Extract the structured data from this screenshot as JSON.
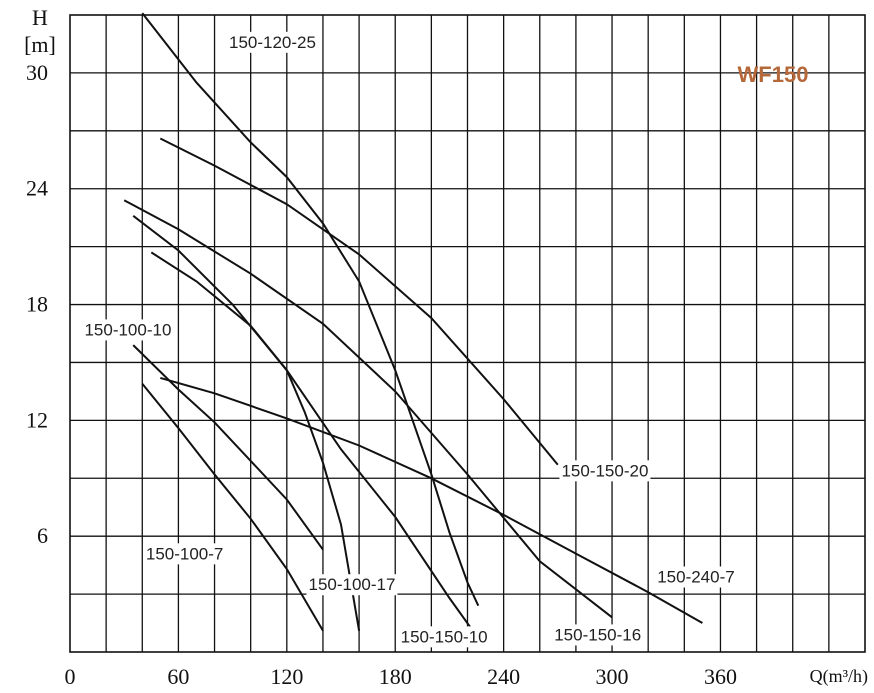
{
  "chart_data": {
    "type": "line",
    "title": "WF150",
    "title_color": "#b5683a",
    "ylabel_symbol": "H",
    "ylabel_unit": "[m]",
    "xlabel": "Q(m³/h)",
    "xlim": [
      0,
      440
    ],
    "ylim": [
      0,
      33
    ],
    "x_ticks": [
      "0",
      "60",
      "120",
      "180",
      "240",
      "300",
      "360"
    ],
    "y_ticks": [
      "6",
      "12",
      "18",
      "24",
      "30"
    ],
    "grid": true,
    "series": [
      {
        "name": "150-120-25",
        "points": [
          [
            40,
            33.1
          ],
          [
            70,
            29.5
          ],
          [
            100,
            26.4
          ],
          [
            120,
            24.6
          ],
          [
            140,
            22.2
          ],
          [
            160,
            19.2
          ],
          [
            180,
            14.6
          ],
          [
            200,
            9.2
          ],
          [
            210,
            6.2
          ],
          [
            220,
            3.6
          ],
          [
            226,
            2.4
          ]
        ]
      },
      {
        "name": "150-150-20",
        "points": [
          [
            50,
            26.6
          ],
          [
            80,
            25.2
          ],
          [
            120,
            23.2
          ],
          [
            160,
            20.6
          ],
          [
            200,
            17.3
          ],
          [
            240,
            13.1
          ],
          [
            270,
            9.7
          ]
        ]
      },
      {
        "name": "150-150-16",
        "points": [
          [
            30,
            23.4
          ],
          [
            60,
            21.9
          ],
          [
            100,
            19.6
          ],
          [
            140,
            17.0
          ],
          [
            180,
            13.5
          ],
          [
            220,
            9.2
          ],
          [
            260,
            4.7
          ],
          [
            300,
            1.8
          ]
        ]
      },
      {
        "name": "150-150-10",
        "points": [
          [
            35,
            22.6
          ],
          [
            60,
            20.8
          ],
          [
            90,
            18.0
          ],
          [
            120,
            14.6
          ],
          [
            150,
            10.5
          ],
          [
            180,
            7.0
          ],
          [
            210,
            2.8
          ],
          [
            223,
            1.1
          ]
        ]
      },
      {
        "name": "150-100-17",
        "points": [
          [
            45,
            20.7
          ],
          [
            70,
            19.2
          ],
          [
            100,
            16.9
          ],
          [
            120,
            14.6
          ],
          [
            130,
            12.4
          ],
          [
            140,
            9.8
          ],
          [
            150,
            6.6
          ],
          [
            160,
            1.1
          ]
        ]
      },
      {
        "name": "150-100-10",
        "points": [
          [
            35,
            15.9
          ],
          [
            60,
            13.6
          ],
          [
            80,
            11.9
          ],
          [
            100,
            9.9
          ],
          [
            120,
            7.9
          ],
          [
            140,
            5.3
          ]
        ]
      },
      {
        "name": "150-100-7",
        "points": [
          [
            40,
            13.9
          ],
          [
            60,
            11.6
          ],
          [
            80,
            9.2
          ],
          [
            100,
            6.9
          ],
          [
            120,
            4.3
          ],
          [
            140,
            1.1
          ]
        ]
      },
      {
        "name": "150-240-7",
        "points": [
          [
            50,
            14.2
          ],
          [
            80,
            13.4
          ],
          [
            120,
            12.1
          ],
          [
            160,
            10.7
          ],
          [
            200,
            9.0
          ],
          [
            240,
            7.1
          ],
          [
            280,
            5.1
          ],
          [
            320,
            3.1
          ],
          [
            350,
            1.5
          ]
        ]
      }
    ],
    "labels": [
      {
        "text": "150-120-25",
        "x": 88,
        "y": 31.3
      },
      {
        "text": "150-150-20",
        "x": 272,
        "y": 9.1
      },
      {
        "text": "150-150-16",
        "x": 268,
        "y": 0.6
      },
      {
        "text": "150-150-10",
        "x": 183,
        "y": 0.5
      },
      {
        "text": "150-100-17",
        "x": 132,
        "y": 3.2
      },
      {
        "text": "150-100-10",
        "x": 8,
        "y": 16.4
      },
      {
        "text": "150-100-7",
        "x": 42,
        "y": 4.8
      },
      {
        "text": "150-240-7",
        "x": 325,
        "y": 3.6
      }
    ]
  }
}
